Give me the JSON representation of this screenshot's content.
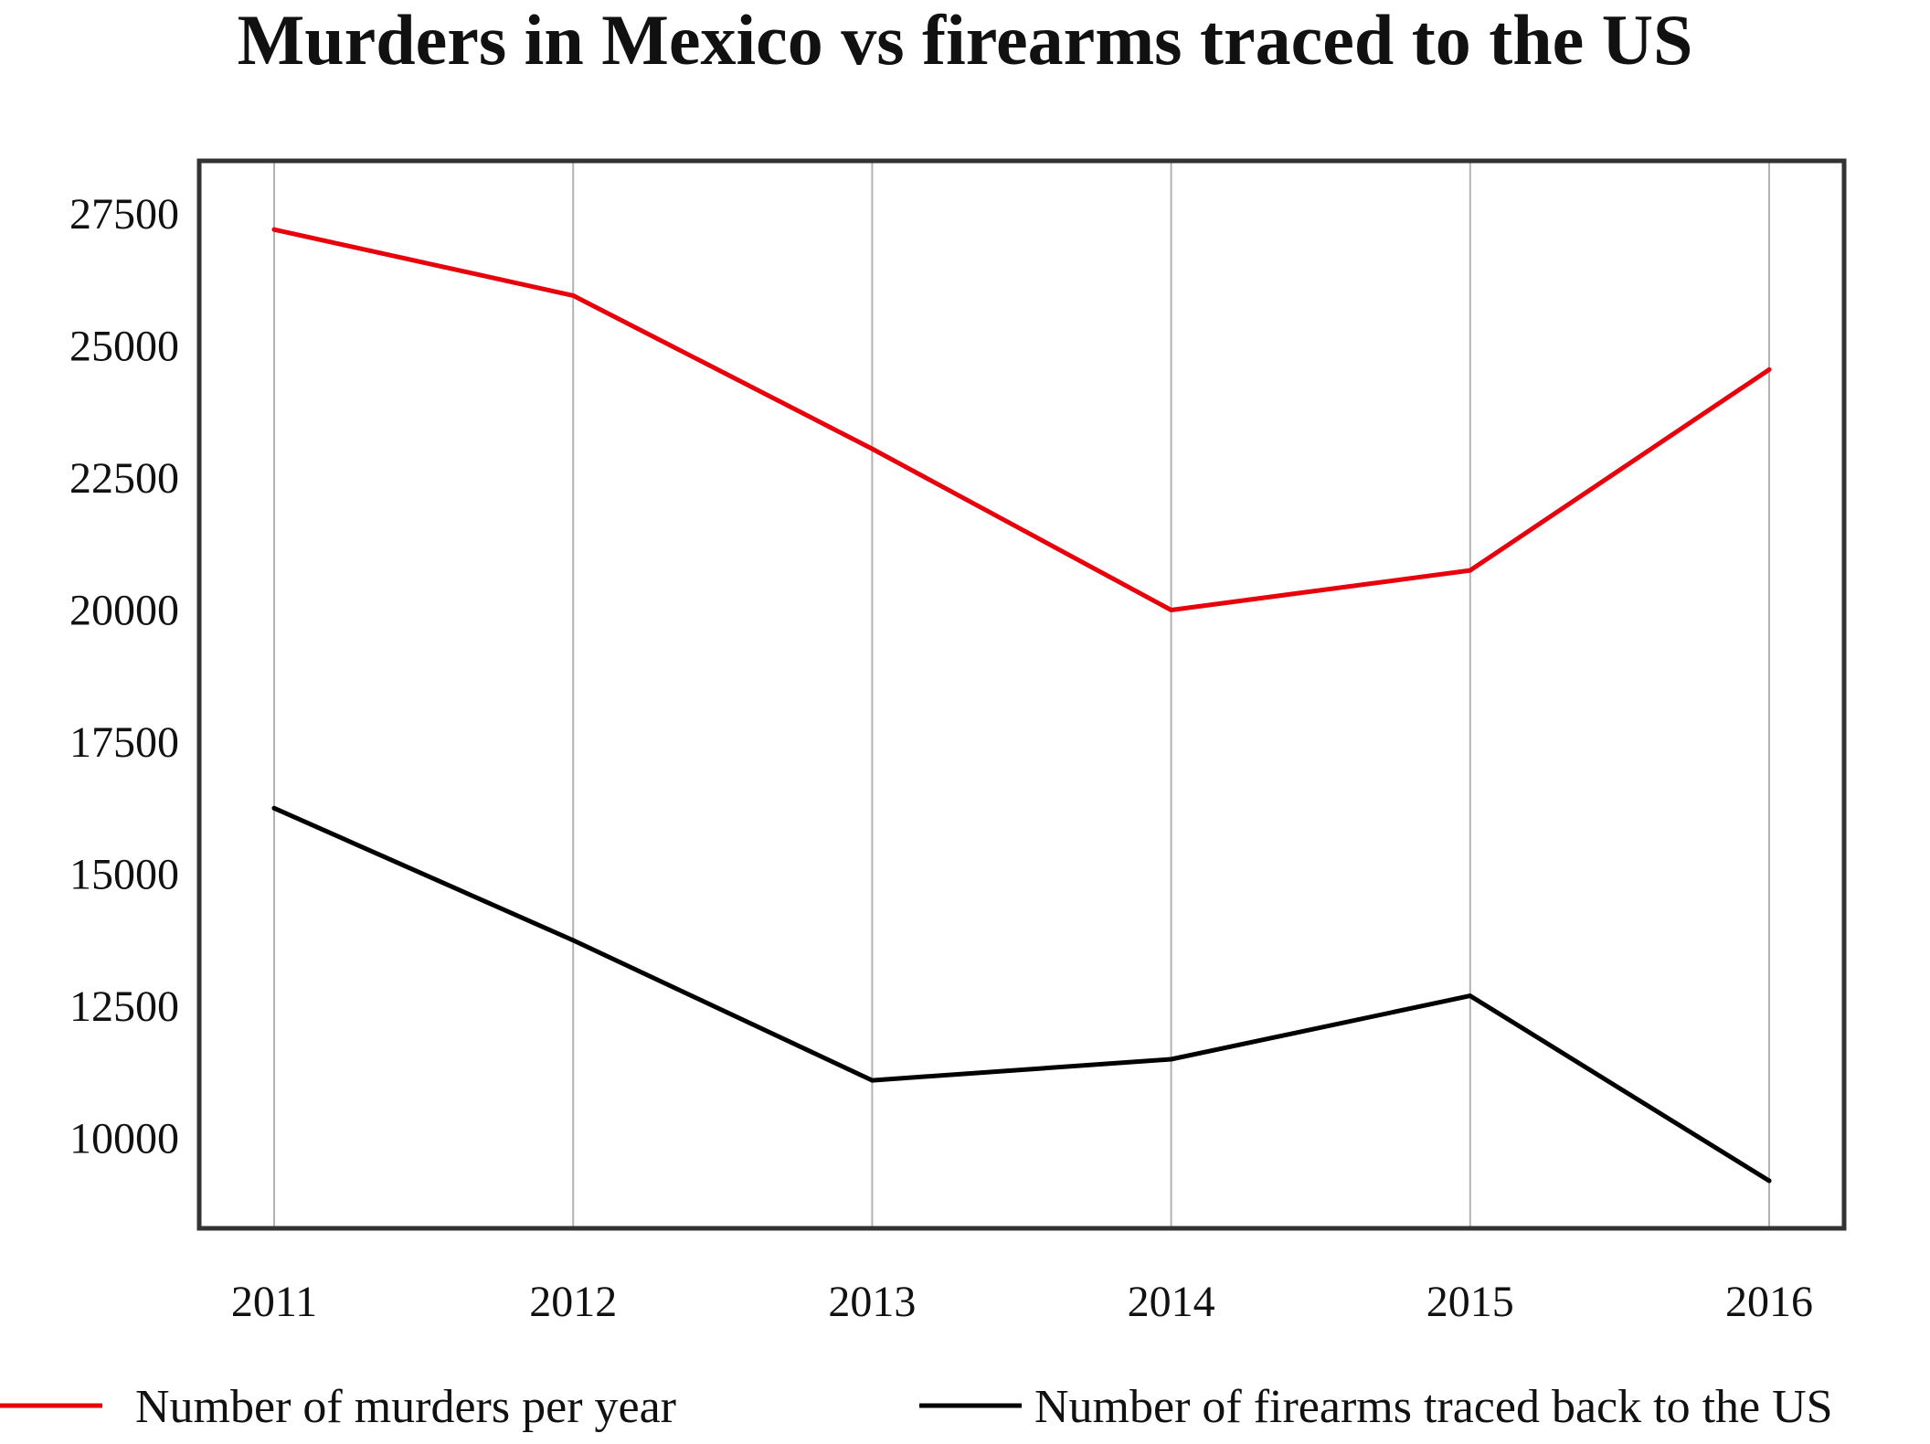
{
  "chart_data": {
    "type": "line",
    "title": "Murders in Mexico vs firearms traced to the US",
    "xlabel": "",
    "ylabel": "",
    "categories": [
      "2011",
      "2012",
      "2013",
      "2014",
      "2015",
      "2016"
    ],
    "y_ticks": [
      10000,
      12500,
      15000,
      17500,
      20000,
      22500,
      25000,
      27500
    ],
    "ylim": [
      8300,
      28500
    ],
    "grid": "vertical",
    "legend_position": "bottom",
    "series": [
      {
        "name": "Number of murders per year",
        "color": "#e8000b",
        "values": [
          27200,
          25950,
          23050,
          20000,
          20750,
          24550
        ]
      },
      {
        "name": "Number of firearms traced back to the US",
        "color": "#000000",
        "values": [
          16250,
          13750,
          11100,
          11500,
          12700,
          9200
        ]
      }
    ]
  }
}
